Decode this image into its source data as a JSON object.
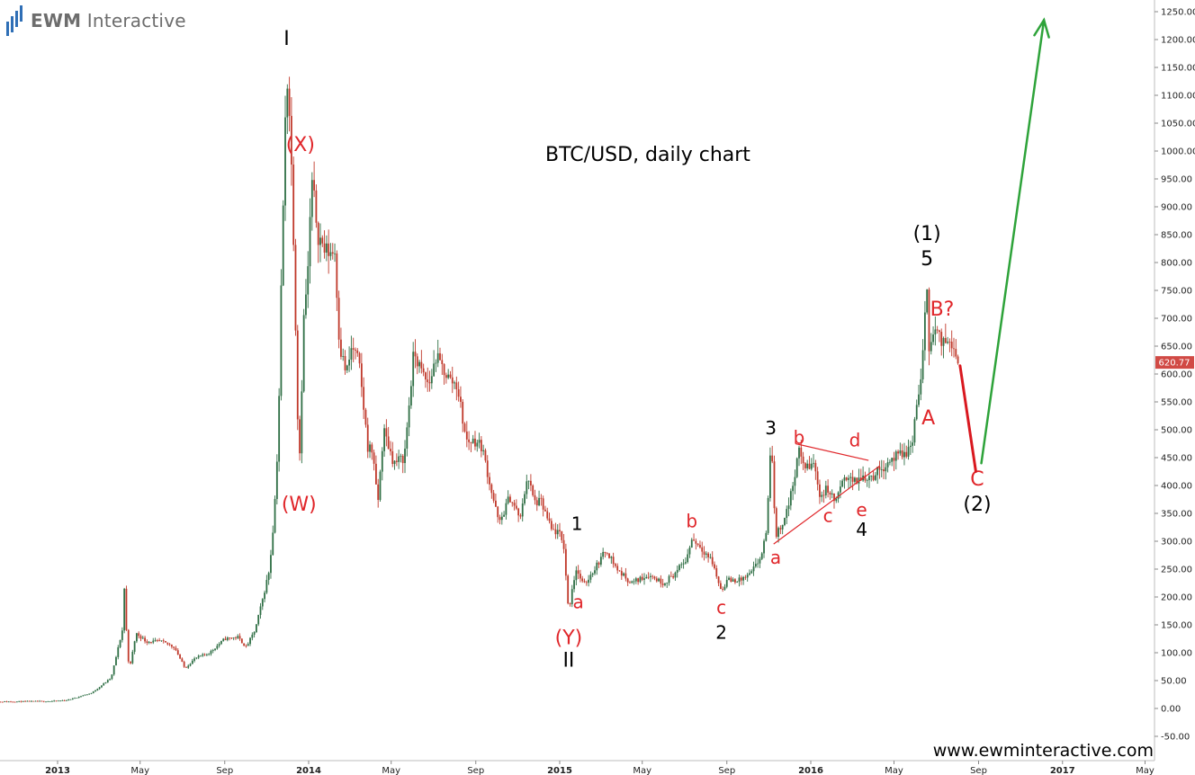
{
  "logo": {
    "brand_bold": "EWM",
    "brand_rest": "Interactive"
  },
  "watermark": "www.ewminteractive.com",
  "colors": {
    "up_candle": "#2f6f45",
    "down_candle": "#c0392b",
    "wave_red": "#e0262a",
    "wave_black": "#000000",
    "projection_red": "#d9181f",
    "projection_green": "#2ea33a",
    "price_tag_bg": "#d14a45",
    "axis_line": "#bdbdbd"
  },
  "chart_data": {
    "type": "candlestick",
    "title": "BTC/USD, daily chart",
    "yaxis": {
      "min": -50,
      "max": 1250,
      "step": 50,
      "side": "right",
      "format": "0.00"
    },
    "xaxis": {
      "tick_labels": [
        "2013",
        "May",
        "Sep",
        "2014",
        "May",
        "Sep",
        "2015",
        "May",
        "Sep",
        "2016",
        "May",
        "Sep",
        "2017",
        "May"
      ],
      "tick_dates": [
        "2013-01-01",
        "2013-05-01",
        "2013-09-01",
        "2014-01-01",
        "2014-05-01",
        "2014-09-01",
        "2015-01-01",
        "2015-05-01",
        "2015-09-01",
        "2016-01-01",
        "2016-05-01",
        "2016-09-01",
        "2017-01-01",
        "2017-05-01"
      ]
    },
    "last_price": "620.77",
    "price_path": [
      [
        "2012-10-01",
        12
      ],
      [
        "2012-12-25",
        13
      ],
      [
        "2013-01-15",
        15
      ],
      [
        "2013-02-20",
        28
      ],
      [
        "2013-03-20",
        55
      ],
      [
        "2013-04-05",
        140
      ],
      [
        "2013-04-09",
        240
      ],
      [
        "2013-04-12",
        90
      ],
      [
        "2013-04-17",
        80
      ],
      [
        "2013-04-25",
        135
      ],
      [
        "2013-05-10",
        120
      ],
      [
        "2013-06-01",
        120
      ],
      [
        "2013-06-20",
        110
      ],
      [
        "2013-07-05",
        72
      ],
      [
        "2013-07-20",
        90
      ],
      [
        "2013-08-10",
        100
      ],
      [
        "2013-09-01",
        125
      ],
      [
        "2013-09-20",
        128
      ],
      [
        "2013-10-02",
        110
      ],
      [
        "2013-10-15",
        140
      ],
      [
        "2013-10-25",
        190
      ],
      [
        "2013-11-05",
        250
      ],
      [
        "2013-11-12",
        350
      ],
      [
        "2013-11-18",
        500
      ],
      [
        "2013-11-22",
        750
      ],
      [
        "2013-11-27",
        1000
      ],
      [
        "2013-11-30",
        1150
      ],
      [
        "2013-12-05",
        1050
      ],
      [
        "2013-12-10",
        850
      ],
      [
        "2013-12-18",
        420
      ],
      [
        "2013-12-25",
        700
      ],
      [
        "2014-01-01",
        800
      ],
      [
        "2014-01-05",
        950
      ],
      [
        "2014-01-15",
        850
      ],
      [
        "2014-01-25",
        820
      ],
      [
        "2014-02-08",
        820
      ],
      [
        "2014-02-15",
        650
      ],
      [
        "2014-02-25",
        600
      ],
      [
        "2014-03-05",
        650
      ],
      [
        "2014-03-15",
        620
      ],
      [
        "2014-03-28",
        470
      ],
      [
        "2014-04-05",
        460
      ],
      [
        "2014-04-11",
        360
      ],
      [
        "2014-04-20",
        500
      ],
      [
        "2014-05-05",
        440
      ],
      [
        "2014-05-20",
        450
      ],
      [
        "2014-06-03",
        640
      ],
      [
        "2014-06-15",
        600
      ],
      [
        "2014-06-25",
        580
      ],
      [
        "2014-07-05",
        630
      ],
      [
        "2014-07-25",
        590
      ],
      [
        "2014-08-05",
        580
      ],
      [
        "2014-08-18",
        480
      ],
      [
        "2014-09-01",
        480
      ],
      [
        "2014-09-10",
        470
      ],
      [
        "2014-09-22",
        400
      ],
      [
        "2014-10-05",
        330
      ],
      [
        "2014-10-20",
        380
      ],
      [
        "2014-11-05",
        340
      ],
      [
        "2014-11-15",
        420
      ],
      [
        "2014-11-25",
        370
      ],
      [
        "2014-12-05",
        370
      ],
      [
        "2014-12-20",
        320
      ],
      [
        "2014-12-31",
        315
      ],
      [
        "2015-01-07",
        290
      ],
      [
        "2015-01-14",
        170
      ],
      [
        "2015-01-18",
        210
      ],
      [
        "2015-01-25",
        250
      ],
      [
        "2015-02-05",
        220
      ],
      [
        "2015-02-15",
        240
      ],
      [
        "2015-03-10",
        285
      ],
      [
        "2015-03-25",
        250
      ],
      [
        "2015-04-15",
        225
      ],
      [
        "2015-05-10",
        240
      ],
      [
        "2015-06-01",
        225
      ],
      [
        "2015-06-20",
        245
      ],
      [
        "2015-07-05",
        270
      ],
      [
        "2015-07-12",
        305
      ],
      [
        "2015-07-25",
        290
      ],
      [
        "2015-08-10",
        265
      ],
      [
        "2015-08-19",
        230
      ],
      [
        "2015-08-24",
        210
      ],
      [
        "2015-09-01",
        230
      ],
      [
        "2015-09-20",
        230
      ],
      [
        "2015-10-05",
        240
      ],
      [
        "2015-10-20",
        270
      ],
      [
        "2015-10-28",
        310
      ],
      [
        "2015-11-04",
        480
      ],
      [
        "2015-11-08",
        390
      ],
      [
        "2015-11-11",
        310
      ],
      [
        "2015-11-20",
        330
      ],
      [
        "2015-12-01",
        370
      ],
      [
        "2015-12-10",
        430
      ],
      [
        "2015-12-15",
        460
      ],
      [
        "2015-12-25",
        430
      ],
      [
        "2016-01-05",
        440
      ],
      [
        "2016-01-15",
        380
      ],
      [
        "2016-01-25",
        395
      ],
      [
        "2016-02-05",
        370
      ],
      [
        "2016-02-15",
        400
      ],
      [
        "2016-02-25",
        420
      ],
      [
        "2016-03-05",
        405
      ],
      [
        "2016-03-15",
        415
      ],
      [
        "2016-04-01",
        418
      ],
      [
        "2016-04-20",
        440
      ],
      [
        "2016-05-01",
        450
      ],
      [
        "2016-05-15",
        455
      ],
      [
        "2016-05-27",
        470
      ],
      [
        "2016-06-02",
        540
      ],
      [
        "2016-06-10",
        590
      ],
      [
        "2016-06-16",
        720
      ],
      [
        "2016-06-18",
        760
      ],
      [
        "2016-06-22",
        620
      ],
      [
        "2016-06-24",
        660
      ],
      [
        "2016-07-01",
        680
      ],
      [
        "2016-07-10",
        650
      ],
      [
        "2016-07-20",
        665
      ],
      [
        "2016-07-28",
        655
      ],
      [
        "2016-08-01",
        615
      ],
      [
        "2016-08-02",
        620.77
      ]
    ],
    "candle_spec": {
      "start": "2012-10-01",
      "end": "2016-08-02",
      "interval_days": 3
    },
    "wave_labels": [
      {
        "text": "I",
        "date": "2013-11-30",
        "price": 1190,
        "color": "black",
        "size": "large"
      },
      {
        "text": "(X)",
        "date": "2013-12-20",
        "price": 1000,
        "color": "red",
        "size": "large"
      },
      {
        "text": "(W)",
        "date": "2013-12-18",
        "price": 355,
        "color": "red",
        "size": "large"
      },
      {
        "text": "(Y)",
        "date": "2015-01-14",
        "price": 115,
        "color": "red",
        "size": "large"
      },
      {
        "text": "II",
        "date": "2015-01-14",
        "price": 75,
        "color": "black",
        "size": "large"
      },
      {
        "text": "1",
        "date": "2015-01-26",
        "price": 320,
        "color": "black",
        "size": "medium"
      },
      {
        "text": "a",
        "date": "2015-01-28",
        "price": 180,
        "color": "red",
        "size": "medium"
      },
      {
        "text": "b",
        "date": "2015-07-12",
        "price": 325,
        "color": "red",
        "size": "medium"
      },
      {
        "text": "c",
        "date": "2015-08-24",
        "price": 170,
        "color": "red",
        "size": "medium"
      },
      {
        "text": "2",
        "date": "2015-08-24",
        "price": 125,
        "color": "black",
        "size": "medium"
      },
      {
        "text": "3",
        "date": "2015-11-04",
        "price": 492,
        "color": "black",
        "size": "medium"
      },
      {
        "text": "a",
        "date": "2015-11-11",
        "price": 260,
        "color": "red",
        "size": "medium"
      },
      {
        "text": "b",
        "date": "2015-12-15",
        "price": 475,
        "color": "red",
        "size": "medium"
      },
      {
        "text": "c",
        "date": "2016-01-26",
        "price": 335,
        "color": "red",
        "size": "medium"
      },
      {
        "text": "d",
        "date": "2016-03-05",
        "price": 470,
        "color": "red",
        "size": "medium"
      },
      {
        "text": "e",
        "date": "2016-03-15",
        "price": 345,
        "color": "red",
        "size": "medium"
      },
      {
        "text": "4",
        "date": "2016-03-15",
        "price": 310,
        "color": "black",
        "size": "medium"
      },
      {
        "text": "(1)",
        "date": "2016-06-18",
        "price": 840,
        "color": "black",
        "size": "large"
      },
      {
        "text": "5",
        "date": "2016-06-18",
        "price": 795,
        "color": "black",
        "size": "large"
      },
      {
        "text": "B?",
        "date": "2016-07-10",
        "price": 705,
        "color": "red",
        "size": "large"
      },
      {
        "text": "A",
        "date": "2016-06-20",
        "price": 510,
        "color": "red",
        "size": "large"
      },
      {
        "text": "C",
        "date": "2016-08-30",
        "price": 400,
        "color": "red",
        "size": "large"
      },
      {
        "text": "(2)",
        "date": "2016-08-30",
        "price": 355,
        "color": "black",
        "size": "large"
      }
    ],
    "triangle_lines": [
      {
        "from": [
          "2015-12-10",
          475
        ],
        "to": [
          "2016-03-25",
          445
        ]
      },
      {
        "from": [
          "2015-11-08",
          295
        ],
        "to": [
          "2016-04-10",
          435
        ]
      }
    ],
    "projections": [
      {
        "color": "red",
        "from": [
          "2016-08-05",
          615
        ],
        "to": [
          "2016-08-28",
          425
        ],
        "arrow": false
      },
      {
        "color": "green",
        "from": [
          "2016-09-05",
          440
        ],
        "to": [
          "2016-12-05",
          1235
        ],
        "arrow": true
      }
    ]
  }
}
